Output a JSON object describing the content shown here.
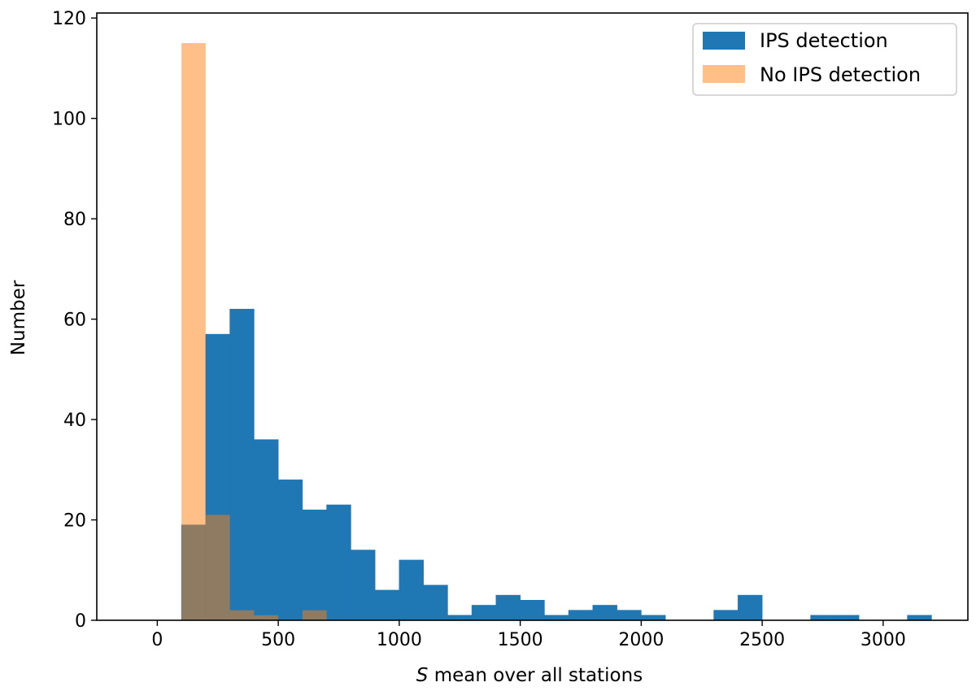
{
  "chart_data": {
    "type": "bar",
    "subtype": "histogram-overlaid",
    "xlabel_italic": "S",
    "xlabel_rest": " mean over all stations",
    "ylabel": "Number",
    "xlim": [
      -250,
      3350
    ],
    "ylim": [
      0,
      121
    ],
    "xticks": [
      0,
      500,
      1000,
      1500,
      2000,
      2500,
      3000
    ],
    "yticks": [
      0,
      20,
      40,
      60,
      80,
      100,
      120
    ],
    "legend_position": "top-right",
    "bin_width": 100,
    "series": [
      {
        "name": "IPS detection",
        "color": "#1f77b4",
        "opacity": 1,
        "bins": [
          [
            100,
            19
          ],
          [
            200,
            57
          ],
          [
            300,
            62
          ],
          [
            400,
            36
          ],
          [
            500,
            28
          ],
          [
            600,
            22
          ],
          [
            700,
            23
          ],
          [
            800,
            14
          ],
          [
            900,
            6
          ],
          [
            1000,
            12
          ],
          [
            1100,
            7
          ],
          [
            1200,
            1
          ],
          [
            1300,
            3
          ],
          [
            1400,
            5
          ],
          [
            1500,
            4
          ],
          [
            1600,
            1
          ],
          [
            1700,
            2
          ],
          [
            1800,
            3
          ],
          [
            1900,
            2
          ],
          [
            2000,
            1
          ],
          [
            2100,
            0
          ],
          [
            2200,
            0
          ],
          [
            2300,
            2
          ],
          [
            2400,
            5
          ],
          [
            2500,
            0
          ],
          [
            2600,
            0
          ],
          [
            2700,
            1
          ],
          [
            2800,
            1
          ],
          [
            2900,
            0
          ],
          [
            3000,
            0
          ],
          [
            3100,
            1
          ]
        ]
      },
      {
        "name": "No IPS detection",
        "color": "#ff7f0e",
        "opacity": 0.5,
        "bins": [
          [
            100,
            115
          ],
          [
            200,
            21
          ],
          [
            300,
            2
          ],
          [
            400,
            1
          ],
          [
            500,
            0
          ],
          [
            600,
            2
          ]
        ]
      }
    ]
  }
}
